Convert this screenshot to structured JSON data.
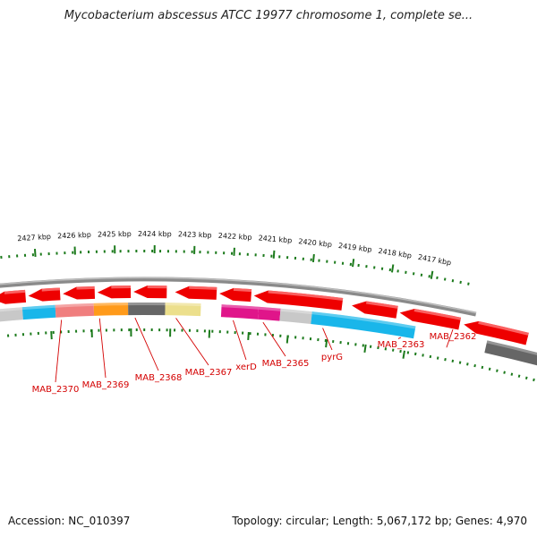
{
  "title": "Mycobacterium abscessus ATCC 19977 chromosome 1, complete se...",
  "accession": "Accession: NC_010397",
  "topology": "Topology: circular; Length: 5,067,172 bp; Genes: 4,970",
  "colors": {
    "backbone": "#8a8a8a",
    "tick": "#1c7a1c",
    "gene_label": "#d40000",
    "cds": "#ee0000",
    "cog_blue": "#19b6ea",
    "cog_pink": "#e0158a",
    "cog_salmon": "#f07e7e",
    "cog_orange": "#ff9a1a",
    "cog_gray": "#666666",
    "cog_khaki": "#ecdf8c",
    "cog_lightgray": "#c8c8c8"
  },
  "ticks": [
    {
      "label": "2427 kbp"
    },
    {
      "label": "2426 kbp"
    },
    {
      "label": "2425 kbp"
    },
    {
      "label": "2424 kbp"
    },
    {
      "label": "2423 kbp"
    },
    {
      "label": "2422 kbp"
    },
    {
      "label": "2421 kbp"
    },
    {
      "label": "2420 kbp"
    },
    {
      "label": "2419 kbp"
    },
    {
      "label": "2418 kbp"
    },
    {
      "label": "2417 kbp"
    }
  ],
  "gene_labels": [
    {
      "label": "MAB_2370"
    },
    {
      "label": "MAB_2369"
    },
    {
      "label": "MAB_2368"
    },
    {
      "label": "MAB_2367"
    },
    {
      "label": "xerD"
    },
    {
      "label": "MAB_2365"
    },
    {
      "label": "pyrG"
    },
    {
      "label": "MAB_2363"
    },
    {
      "label": "MAB_2362"
    }
  ]
}
